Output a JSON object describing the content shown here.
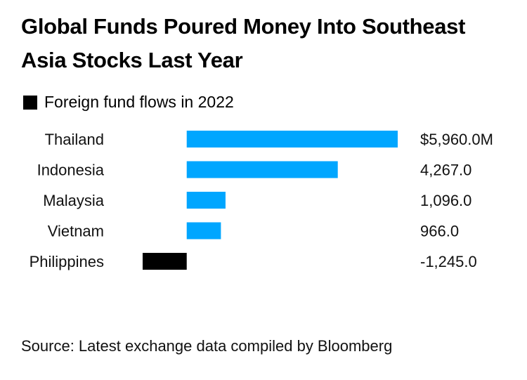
{
  "title": "Global Funds Poured Money Into Southeast Asia Stocks Last Year",
  "legend": {
    "label": "Foreign fund flows in 2022"
  },
  "source": "Source: Latest exchange data compiled by Bloomberg",
  "colors": {
    "positive": "#00a6ff",
    "negative": "#000000",
    "text": "#111111"
  },
  "chart_data": {
    "type": "bar",
    "orientation": "horizontal",
    "categories": [
      "Thailand",
      "Indonesia",
      "Malaysia",
      "Vietnam",
      "Philippines"
    ],
    "series": [
      {
        "name": "Foreign fund flows in 2022",
        "values": [
          5960.0,
          4267.0,
          1096.0,
          966.0,
          -1245.0
        ]
      }
    ],
    "value_labels": [
      "$5,960.0M",
      "4,267.0",
      "1,096.0",
      "966.0",
      "-1,245.0"
    ],
    "title": "Global Funds Poured Money Into Southeast Asia Stocks Last Year",
    "xlabel": "",
    "ylabel": "",
    "xlim": [
      -1245.0,
      5960.0
    ],
    "grid": false,
    "legend_position": "top-left"
  }
}
